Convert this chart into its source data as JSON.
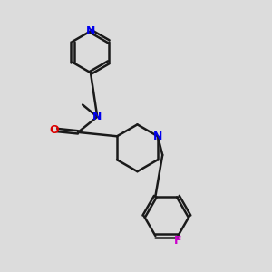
{
  "background_color": "#dcdcdc",
  "bond_color": "#1a1a1a",
  "N_color": "#0000ee",
  "O_color": "#dd0000",
  "F_color": "#cc00cc",
  "line_width": 1.8,
  "figsize": [
    3.0,
    3.0
  ],
  "dpi": 100,
  "xlim": [
    0,
    10
  ],
  "ylim": [
    0,
    10
  ]
}
